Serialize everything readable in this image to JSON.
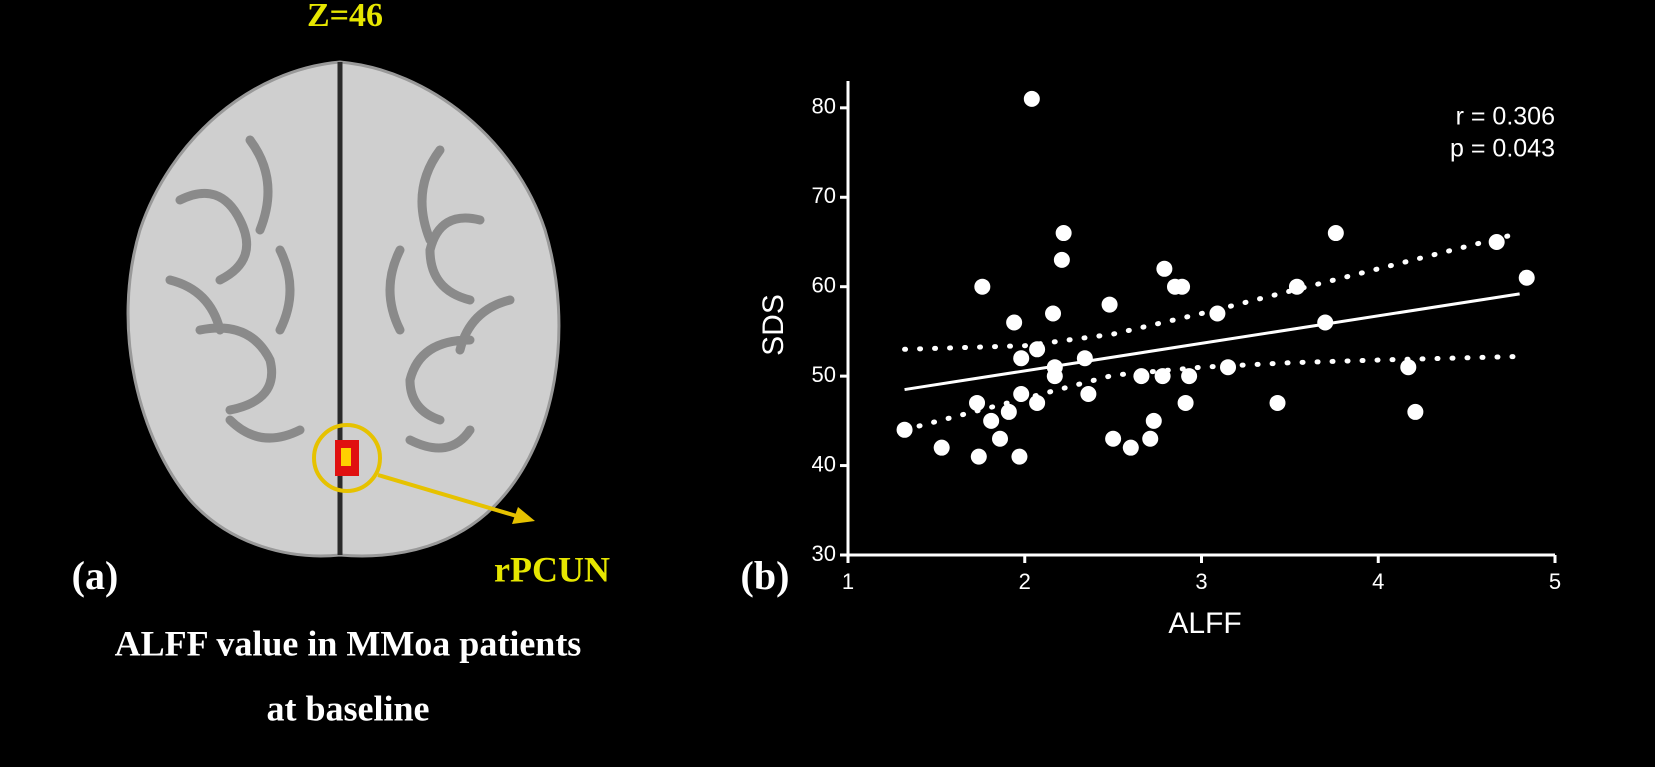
{
  "panel_a": {
    "label": "(a)",
    "slice": "Z=46",
    "region": "rPCUN",
    "caption": [
      "ALFF value in MMoa patients",
      "at baseline"
    ]
  },
  "chart_data": {
    "type": "scatter",
    "panel_label": "(b)",
    "x_label": "ALFF",
    "y_label": "SDS",
    "annotations": [
      "r = 0.306",
      "p = 0.043"
    ],
    "x": [
      1.32,
      1.53,
      1.74,
      1.73,
      1.76,
      1.81,
      1.86,
      1.91,
      1.94,
      1.97,
      1.98,
      1.98,
      2.07,
      2.07,
      2.04,
      2.16,
      2.17,
      2.17,
      2.21,
      2.22,
      2.34,
      2.36,
      2.48,
      2.5,
      2.6,
      2.66,
      2.71,
      2.73,
      2.79,
      2.78,
      2.85,
      2.89,
      2.91,
      2.93,
      3.09,
      3.15,
      3.43,
      3.54,
      3.7,
      3.76,
      4.17,
      4.21,
      4.67,
      4.84
    ],
    "values": [
      44,
      42,
      41,
      47,
      60,
      45,
      43,
      46,
      56,
      41,
      52,
      48,
      53,
      47,
      81,
      57,
      51,
      50,
      63,
      66,
      52,
      48,
      58,
      43,
      42,
      50,
      43,
      45,
      62,
      50,
      60,
      60,
      47,
      50,
      57,
      51,
      47,
      60,
      56,
      66,
      51,
      46,
      65,
      61
    ],
    "color": "#ffffff",
    "fit": {
      "x": [
        1.32,
        4.8
      ],
      "values": [
        48.5,
        59.2
      ]
    },
    "band_upper": {
      "x": [
        1.32,
        2,
        2.5,
        3,
        3.5,
        4,
        4.8
      ],
      "values": [
        53,
        53.4,
        54.7,
        57,
        59.5,
        62,
        66
      ]
    },
    "band_lower": {
      "x": [
        1.32,
        2,
        2.5,
        3,
        3.5,
        4,
        4.8
      ],
      "values": [
        44,
        47.5,
        50.1,
        51,
        51.5,
        51.8,
        52.2
      ]
    },
    "xlim": [
      1,
      5
    ],
    "ylim": [
      30,
      83
    ],
    "xticks": [
      1,
      2,
      3,
      4,
      5
    ],
    "yticks": [
      30,
      40,
      50,
      60,
      70,
      80
    ]
  }
}
